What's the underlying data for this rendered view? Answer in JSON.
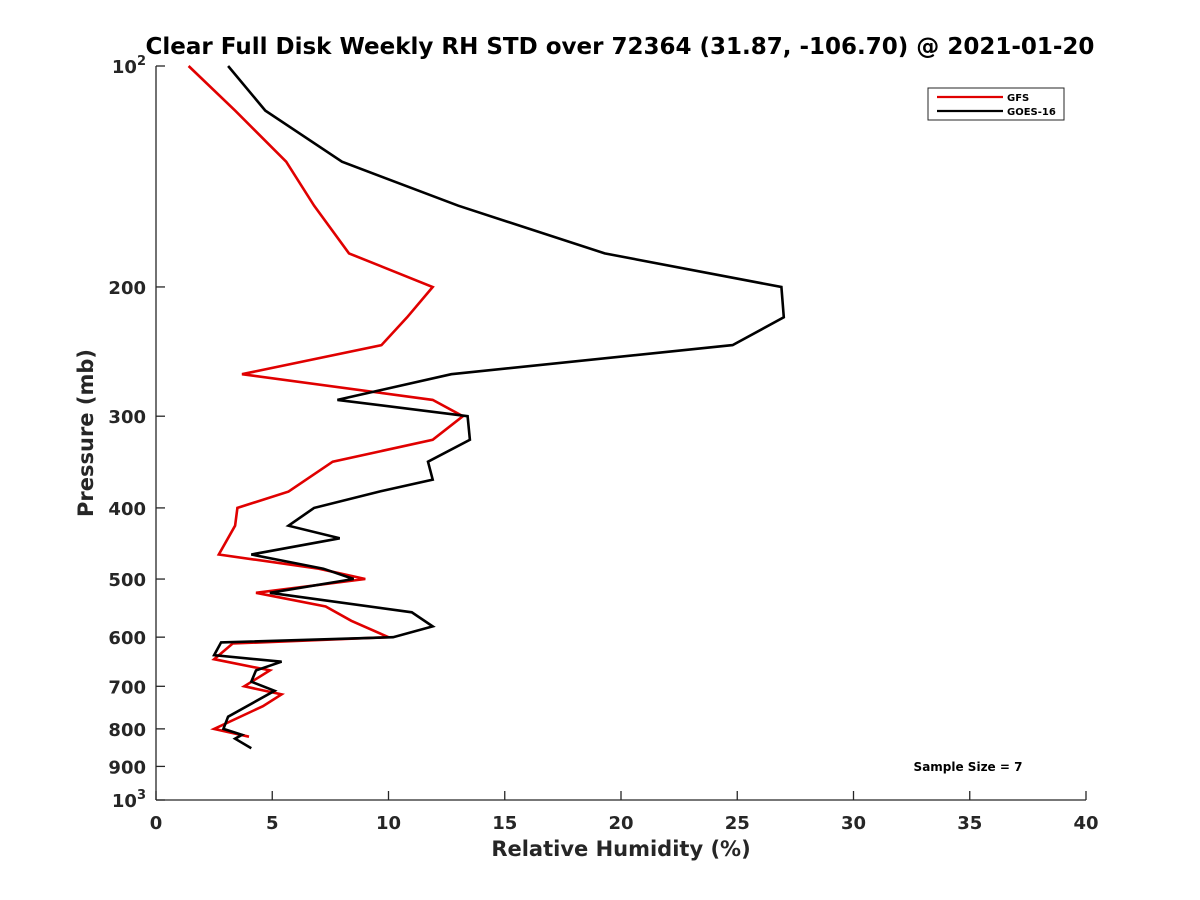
{
  "chart_data": {
    "type": "line",
    "title": "Clear Full Disk Weekly RH STD over 72364 (31.87, -106.70) @ 2021-01-20",
    "xlabel": "Relative Humidity (%)",
    "ylabel": "Pressure (mb)",
    "xlim": [
      0,
      40
    ],
    "ylim": [
      100,
      1000
    ],
    "y_scale": "log",
    "y_reversed": true,
    "x_ticks": [
      0,
      5,
      10,
      15,
      20,
      25,
      30,
      35,
      40
    ],
    "x_tick_labels": [
      "0",
      "5",
      "10",
      "15",
      "20",
      "25",
      "30",
      "35",
      "40"
    ],
    "y_ticks": [
      100,
      200,
      300,
      400,
      500,
      600,
      700,
      800,
      900,
      1000
    ],
    "y_tick_labels": [
      {
        "base": "10",
        "exp": "2"
      },
      {
        "base": "200",
        "exp": ""
      },
      {
        "base": "300",
        "exp": ""
      },
      {
        "base": "400",
        "exp": ""
      },
      {
        "base": "500",
        "exp": ""
      },
      {
        "base": "600",
        "exp": ""
      },
      {
        "base": "700",
        "exp": ""
      },
      {
        "base": "800",
        "exp": ""
      },
      {
        "base": "900",
        "exp": ""
      },
      {
        "base": "10",
        "exp": "3"
      }
    ],
    "grid": false,
    "legend_position": "top-right",
    "annotation": "Sample Size = 7",
    "series": [
      {
        "name": "GFS",
        "color": "#e00000",
        "points": [
          [
            1.4,
            100
          ],
          [
            3.4,
            115
          ],
          [
            5.6,
            135
          ],
          [
            6.8,
            155
          ],
          [
            8.3,
            180
          ],
          [
            11.9,
            200
          ],
          [
            10.8,
            220
          ],
          [
            9.7,
            240
          ],
          [
            3.7,
            263
          ],
          [
            11.9,
            285
          ],
          [
            13.2,
            300
          ],
          [
            11.9,
            323
          ],
          [
            7.6,
            346
          ],
          [
            5.7,
            380
          ],
          [
            3.5,
            400
          ],
          [
            3.4,
            423
          ],
          [
            2.7,
            463
          ],
          [
            7.0,
            484
          ],
          [
            9.0,
            500
          ],
          [
            4.3,
            522
          ],
          [
            7.3,
            545
          ],
          [
            8.4,
            570
          ],
          [
            10.0,
            600
          ],
          [
            3.3,
            612
          ],
          [
            2.5,
            643
          ],
          [
            4.9,
            666
          ],
          [
            3.8,
            700
          ],
          [
            5.4,
            718
          ],
          [
            4.6,
            745
          ],
          [
            2.5,
            800
          ],
          [
            4.0,
            820
          ]
        ]
      },
      {
        "name": "GOES-16",
        "color": "#000000",
        "points": [
          [
            3.1,
            100
          ],
          [
            4.7,
            115
          ],
          [
            8.0,
            135
          ],
          [
            13.0,
            155
          ],
          [
            19.3,
            180
          ],
          [
            26.9,
            200
          ],
          [
            27.0,
            220
          ],
          [
            24.8,
            240
          ],
          [
            12.7,
            263
          ],
          [
            7.8,
            285
          ],
          [
            13.4,
            300
          ],
          [
            13.5,
            323
          ],
          [
            11.7,
            346
          ],
          [
            11.9,
            366
          ],
          [
            9.6,
            380
          ],
          [
            6.8,
            400
          ],
          [
            5.7,
            423
          ],
          [
            7.9,
            440
          ],
          [
            4.1,
            463
          ],
          [
            7.2,
            484
          ],
          [
            8.5,
            500
          ],
          [
            4.9,
            522
          ],
          [
            11.0,
            555
          ],
          [
            11.9,
            580
          ],
          [
            10.2,
            600
          ],
          [
            2.8,
            610
          ],
          [
            2.5,
            635
          ],
          [
            5.4,
            648
          ],
          [
            4.3,
            666
          ],
          [
            4.1,
            690
          ],
          [
            5.1,
            710
          ],
          [
            3.1,
            770
          ],
          [
            2.9,
            800
          ],
          [
            3.7,
            815
          ],
          [
            3.4,
            825
          ],
          [
            4.1,
            850
          ]
        ]
      }
    ]
  }
}
